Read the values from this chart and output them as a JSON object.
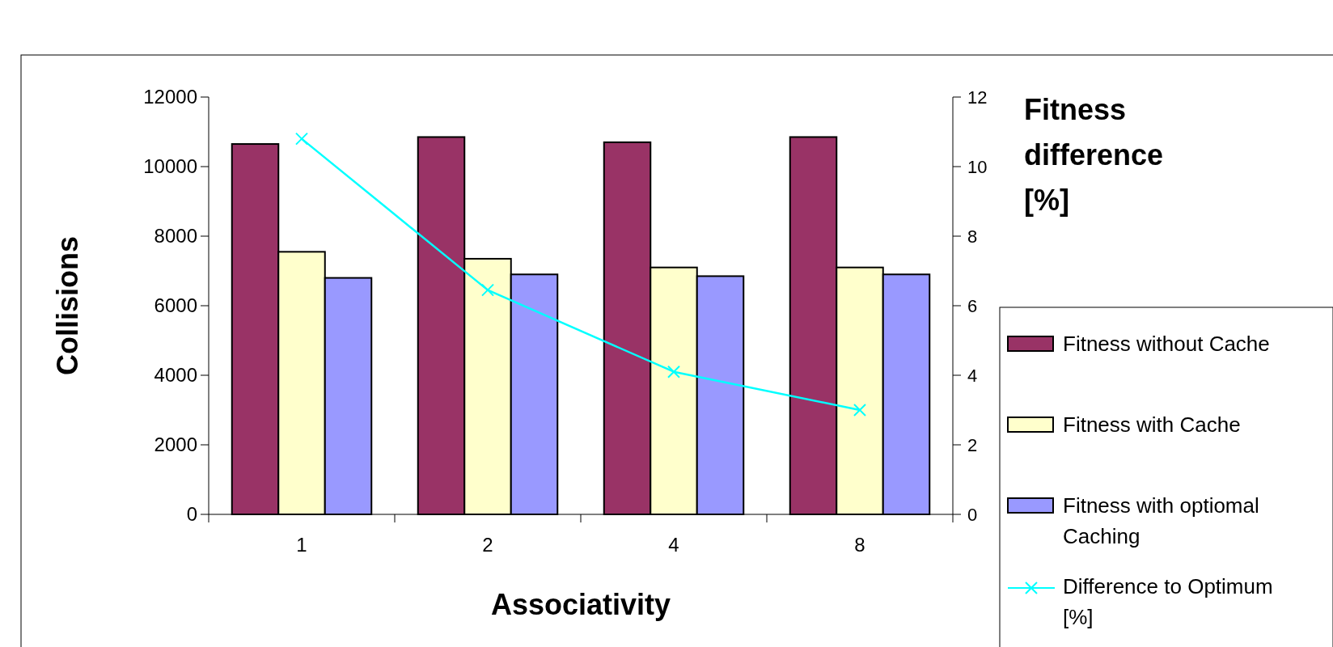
{
  "chart_data": {
    "type": "bar",
    "xlabel": "Associativity",
    "ylabel": "Collisions",
    "y2label": "Fitness difference [%]",
    "categories": [
      "1",
      "2",
      "4",
      "8"
    ],
    "series": [
      {
        "name": "Fitness without Cache",
        "color": "#993366",
        "values": [
          10650,
          10850,
          10700,
          10850
        ]
      },
      {
        "name": "Fitness with Cache",
        "color": "#ffffcc",
        "values": [
          7550,
          7350,
          7100,
          7100
        ]
      },
      {
        "name": "Fitness with optiomal Caching",
        "color": "#9999ff",
        "values": [
          6800,
          6900,
          6850,
          6900
        ]
      },
      {
        "name": "Difference to Optimum [%]",
        "type": "line",
        "axis": "y2",
        "color": "#00ffff",
        "marker": "cross",
        "values": [
          10.8,
          6.45,
          4.1,
          3
        ]
      }
    ],
    "ylim": [
      0,
      12000
    ],
    "yticks": [
      0,
      2000,
      4000,
      6000,
      8000,
      10000,
      12000
    ],
    "y2lim": [
      0,
      12
    ],
    "y2ticks": [
      0,
      2,
      4,
      6,
      8,
      10,
      12
    ],
    "grid": false,
    "legend": "right"
  }
}
